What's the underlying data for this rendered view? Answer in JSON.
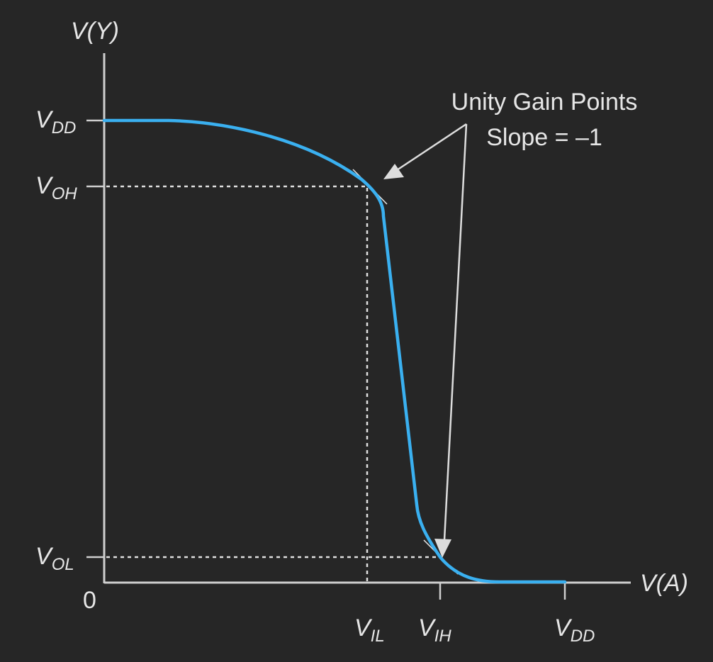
{
  "axes": {
    "y_label": {
      "main": "V(Y)"
    },
    "x_label": {
      "main": "V(A)"
    },
    "origin": "0"
  },
  "y_ticks": [
    {
      "id": "vdd",
      "main": "V",
      "sub": "DD"
    },
    {
      "id": "voh",
      "main": "V",
      "sub": "OH"
    },
    {
      "id": "vol",
      "main": "V",
      "sub": "OL"
    }
  ],
  "x_ticks": [
    {
      "id": "vil",
      "main": "V",
      "sub": "IL"
    },
    {
      "id": "vih",
      "main": "V",
      "sub": "IH"
    },
    {
      "id": "vdd",
      "main": "V",
      "sub": "DD"
    }
  ],
  "annotation": {
    "line1": "Unity Gain Points",
    "line2": "Slope = –1"
  },
  "colors": {
    "background": "#262626",
    "curve": "#3ab0f0",
    "axis": "#cfcfcf"
  }
}
